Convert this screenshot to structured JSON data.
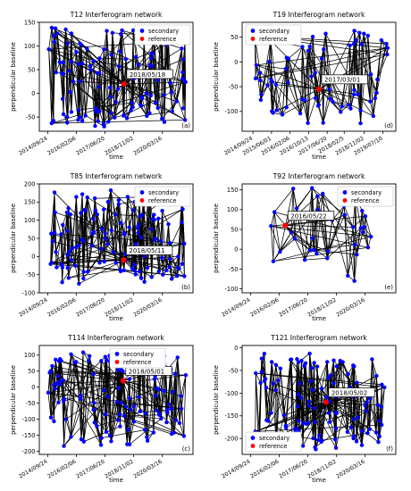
{
  "figure": {
    "colors": {
      "secondary": "#0000ff",
      "reference": "#ff0000",
      "edge": "#000000",
      "axis": "#000000"
    },
    "legend_labels": {
      "secondary": "secondary",
      "reference": "reference"
    }
  },
  "chart_data": [
    {
      "type": "scatter",
      "title": "T12 Interferogram network",
      "xlabel": "time",
      "ylabel": "perpendicular baseline",
      "panel_label": "(a)",
      "legend_position": "top-right",
      "xlim": [
        "2014-05-01",
        "2021-09-01"
      ],
      "ylim": [
        -80,
        150
      ],
      "x_ticks": [
        "2014/09/24",
        "2016/02/06",
        "2017/06/20",
        "2018/11/02",
        "2020/03/16"
      ],
      "y_ticks": [
        -50,
        0,
        50,
        100,
        150
      ],
      "reference": {
        "date": "2018-05-18",
        "baseline": 20,
        "label": "2018/05/18"
      },
      "secondary": {
        "date_range": [
          "2014-09-24",
          "2021-05-01"
        ],
        "baseline_range": [
          -70,
          140
        ],
        "approx_count": 120
      }
    },
    {
      "type": "scatter",
      "title": "T19 Interferogram network",
      "xlabel": "time",
      "ylabel": "perpendicular baseline",
      "panel_label": "(d)",
      "legend_position": "top-left",
      "xlim": [
        "2014-05-01",
        "2020-01-01"
      ],
      "ylim": [
        -140,
        80
      ],
      "x_ticks": [
        "2014/09/24",
        "2015/06/01",
        "2016/02/06",
        "2016/10/13",
        "2017/06/20",
        "2018/02/5",
        "2018/11/02",
        "2019/07/10"
      ],
      "y_ticks": [
        -100,
        -50,
        0,
        50
      ],
      "reference": {
        "date": "2017-03-01",
        "baseline": -55,
        "label": "2017/03/01"
      },
      "secondary": {
        "date_range": [
          "2014-09-24",
          "2019-10-01"
        ],
        "baseline_range": [
          -125,
          65
        ],
        "approx_count": 70
      }
    },
    {
      "type": "scatter",
      "title": "T85 Interferogram network",
      "xlabel": "time",
      "ylabel": "perpendicular baseline",
      "panel_label": "(b)",
      "legend_position": "top-right",
      "xlim": [
        "2014-05-01",
        "2021-09-01"
      ],
      "ylim": [
        -100,
        200
      ],
      "x_ticks": [
        "2014/09/24",
        "2016/02/06",
        "2017/06/20",
        "2018/11/02",
        "2020/03/16"
      ],
      "y_ticks": [
        -100,
        -50,
        0,
        50,
        100,
        150,
        200
      ],
      "reference": {
        "date": "2018-05-11",
        "baseline": -10,
        "label": "2018/05/11"
      },
      "secondary": {
        "date_range": [
          "2014-11-01",
          "2021-05-01"
        ],
        "baseline_range": [
          -75,
          185
        ],
        "approx_count": 130
      }
    },
    {
      "type": "scatter",
      "title": "T92 Interferogram network",
      "xlabel": "time",
      "ylabel": "perpendicular baseline",
      "panel_label": "(e)",
      "legend_position": "top-right",
      "xlim": [
        "2014-05-01",
        "2021-09-01"
      ],
      "ylim": [
        -110,
        165
      ],
      "x_ticks": [
        "2014/09/24",
        "2016/02/06",
        "2017/06/20",
        "2018/11/02",
        "2020/03/16"
      ],
      "y_ticks": [
        -100,
        -50,
        0,
        50,
        100,
        150
      ],
      "reference": {
        "date": "2016-05-22",
        "baseline": 60,
        "label": "2016/05/22"
      },
      "secondary": {
        "date_range": [
          "2015-09-01",
          "2020-11-01"
        ],
        "baseline_range": [
          -90,
          155
        ],
        "approx_count": 35
      }
    },
    {
      "type": "scatter",
      "title": "T114 Interferogram network",
      "xlabel": "time",
      "ylabel": "perpendicular baseline",
      "panel_label": "(c)",
      "legend_position": "top-center",
      "xlim": [
        "2014-05-01",
        "2021-09-01"
      ],
      "ylim": [
        -210,
        130
      ],
      "x_ticks": [
        "2014/09/24",
        "2016/02/06",
        "2017/06/20",
        "2018/11/02",
        "2020/03/16"
      ],
      "y_ticks": [
        -200,
        -150,
        -100,
        -50,
        0,
        50,
        100
      ],
      "reference": {
        "date": "2018-05-01",
        "baseline": 20,
        "label": "2018/05/01"
      },
      "secondary": {
        "date_range": [
          "2014-09-24",
          "2021-05-01"
        ],
        "baseline_range": [
          -185,
          110
        ],
        "approx_count": 120
      }
    },
    {
      "type": "scatter",
      "title": "T121 Interferogram network",
      "xlabel": "time",
      "ylabel": "perpendicular baseline",
      "panel_label": "(f)",
      "legend_position": "bottom-left",
      "xlim": [
        "2014-05-01",
        "2021-09-01"
      ],
      "ylim": [
        -235,
        5
      ],
      "x_ticks": [
        "2014/09/24",
        "2016/02/06",
        "2017/06/20",
        "2018/11/02",
        "2020/03/16"
      ],
      "y_ticks": [
        -200,
        -150,
        -100,
        -50,
        0
      ],
      "reference": {
        "date": "2018-05-02",
        "baseline": -120,
        "label": "2018/05/02"
      },
      "secondary": {
        "date_range": [
          "2014-12-01",
          "2021-05-01"
        ],
        "baseline_range": [
          -225,
          -10
        ],
        "approx_count": 120
      }
    }
  ]
}
